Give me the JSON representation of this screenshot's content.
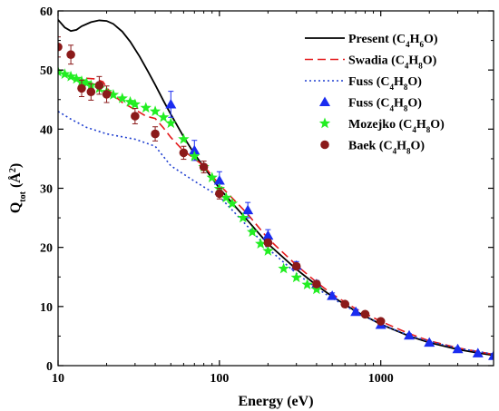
{
  "chart_data": {
    "type": "scatter",
    "x_scale": "log",
    "xlim": [
      10,
      5000
    ],
    "ylim": [
      0,
      60
    ],
    "x_ticks": [
      {
        "value": 10,
        "label": "10"
      },
      {
        "value": 100,
        "label": "100"
      },
      {
        "value": 1000,
        "label": "1000"
      }
    ],
    "y_ticks": [
      0,
      10,
      20,
      30,
      40,
      50,
      60
    ],
    "xlabel": "Energy (eV)",
    "ylabel": "Q<tspan baseline-shift=\"sub\" font-size=\"10\">tot</tspan> (Å<tspan baseline-shift=\"super\" font-size=\"10\">2</tspan>)",
    "legend_position": "top-right",
    "colors": {
      "present": "#000000",
      "swadia": "#e41a1c",
      "fuss_theory": "#1f3fd0",
      "fuss_exp": "#1a2cf0",
      "mozejko": "#22ee22",
      "baek": "#8b1a1a"
    },
    "series": [
      {
        "name": "Present (C4H6O)",
        "legend_label": "Present (C<tspan baseline-shift=\"sub\" font-size=\"9\">4</tspan>H<tspan baseline-shift=\"sub\" font-size=\"9\">6</tspan>O)",
        "kind": "line",
        "style": "solid",
        "color": "#000000",
        "x": [
          10,
          11,
          12,
          13,
          14,
          16,
          18,
          20,
          22,
          25,
          28,
          32,
          36,
          40,
          45,
          50,
          60,
          70,
          80,
          100,
          120,
          150,
          200,
          300,
          400,
          500,
          700,
          1000,
          1500,
          2000,
          3000,
          4000,
          5000
        ],
        "y": [
          58.5,
          57.2,
          56.6,
          56.8,
          57.4,
          58.1,
          58.4,
          58.3,
          57.8,
          56.5,
          54.8,
          52.3,
          49.8,
          47.5,
          44.8,
          42.5,
          38.7,
          35.8,
          33.6,
          30.0,
          27.5,
          24.5,
          20.6,
          16.3,
          13.6,
          11.7,
          9.2,
          7.0,
          5.0,
          3.9,
          2.75,
          2.15,
          1.75
        ]
      },
      {
        "name": "Swadia (C4H8O)",
        "legend_label": "Swadia (C<tspan baseline-shift=\"sub\" font-size=\"9\">4</tspan>H<tspan baseline-shift=\"sub\" font-size=\"9\">8</tspan>O)",
        "kind": "line",
        "style": "dashed",
        "color": "#e41a1c",
        "x": [
          15,
          17,
          19,
          20,
          22,
          25,
          30,
          35,
          40,
          45,
          50,
          60,
          70,
          80,
          100,
          150,
          200,
          300,
          400,
          500,
          700,
          1000,
          1500,
          2000,
          3000,
          5000
        ],
        "y": [
          48.6,
          48.5,
          48.0,
          47.0,
          45.8,
          44.5,
          43.3,
          42.2,
          41.8,
          40.2,
          38.6,
          36.3,
          35.0,
          33.8,
          30.6,
          25.6,
          21.5,
          17.0,
          14.1,
          12.1,
          9.6,
          7.5,
          5.4,
          4.2,
          3.0,
          1.9
        ]
      },
      {
        "name": "Fuss (C4H8O) theory",
        "legend_label": "Fuss (C<tspan baseline-shift=\"sub\" font-size=\"9\">4</tspan>H<tspan baseline-shift=\"sub\" font-size=\"9\">8</tspan>O)",
        "kind": "line",
        "style": "dotted",
        "color": "#1f3fd0",
        "x": [
          10,
          12,
          15,
          20,
          25,
          30,
          40,
          50,
          70,
          100,
          150,
          200,
          300,
          400,
          500,
          700,
          1000,
          1500,
          2000,
          3000,
          5000
        ],
        "y": [
          43.0,
          41.7,
          40.3,
          39.2,
          38.7,
          38.3,
          37.1,
          33.8,
          31.2,
          28.6,
          23.5,
          19.8,
          15.6,
          13.1,
          11.4,
          9.1,
          7.0,
          5.1,
          4.1,
          2.95,
          1.95
        ]
      },
      {
        "name": "Fuss (C4H8O) experiment",
        "legend_label": "Fuss (C<tspan baseline-shift=\"sub\" font-size=\"9\">4</tspan>H<tspan baseline-shift=\"sub\" font-size=\"9\">8</tspan>O)",
        "kind": "marker",
        "marker": "triangle",
        "color": "#1a2cf0",
        "x": [
          50,
          70,
          100,
          150,
          200,
          300,
          400,
          500,
          700,
          1000,
          1500,
          2000,
          3000,
          4000,
          5000
        ],
        "y": [
          44.2,
          36.4,
          31.3,
          26.3,
          22.0,
          16.9,
          13.8,
          11.8,
          9.1,
          6.9,
          5.1,
          3.9,
          2.8,
          2.1,
          1.65
        ],
        "err": [
          2.2,
          1.7,
          1.5,
          1.3,
          1.0,
          0.7,
          0.6,
          0.5,
          0.4,
          0.3,
          0.3,
          0.2,
          0.2,
          0.1,
          0.1
        ]
      },
      {
        "name": "Mozejko (C4H8O)",
        "legend_label": "Mozejko (C<tspan baseline-shift=\"sub\" font-size=\"9\">4</tspan>H<tspan baseline-shift=\"sub\" font-size=\"9\">8</tspan>O)",
        "kind": "marker",
        "marker": "star",
        "color": "#22ee22",
        "x": [
          10,
          11,
          12,
          13,
          14,
          15,
          16,
          18,
          20,
          22,
          25,
          28,
          30,
          35,
          40,
          45,
          50,
          60,
          70,
          80,
          90,
          100,
          110,
          120,
          140,
          160,
          180,
          200,
          250,
          300,
          350,
          400
        ],
        "y": [
          49.7,
          49.3,
          48.9,
          48.5,
          48.1,
          47.8,
          47.4,
          46.9,
          46.3,
          45.8,
          45.2,
          44.6,
          44.2,
          43.6,
          43.0,
          42.0,
          41.0,
          38.3,
          35.4,
          33.6,
          31.8,
          29.9,
          28.4,
          27.4,
          25.0,
          22.6,
          20.6,
          19.4,
          16.4,
          14.9,
          13.7,
          12.9
        ]
      },
      {
        "name": "Baek (C4H8O)",
        "legend_label": "Baek (C<tspan baseline-shift=\"sub\" font-size=\"9\">4</tspan>H<tspan baseline-shift=\"sub\" font-size=\"9\">8</tspan>O)",
        "kind": "marker",
        "marker": "circle",
        "color": "#8b1a1a",
        "x": [
          10,
          12,
          14,
          16,
          18,
          20,
          30,
          40,
          60,
          80,
          100,
          200,
          300,
          400,
          600,
          800,
          1000
        ],
        "y": [
          53.9,
          52.6,
          46.9,
          46.3,
          47.4,
          45.9,
          42.2,
          39.2,
          36.0,
          33.6,
          29.1,
          20.8,
          16.8,
          13.8,
          10.4,
          8.7,
          7.5
        ],
        "err": [
          1.7,
          1.6,
          1.4,
          1.4,
          1.5,
          1.4,
          1.3,
          1.2,
          1.1,
          1.0,
          0.9,
          0.6,
          0.5,
          0.4,
          0.3,
          0.3,
          0.2
        ]
      }
    ]
  }
}
